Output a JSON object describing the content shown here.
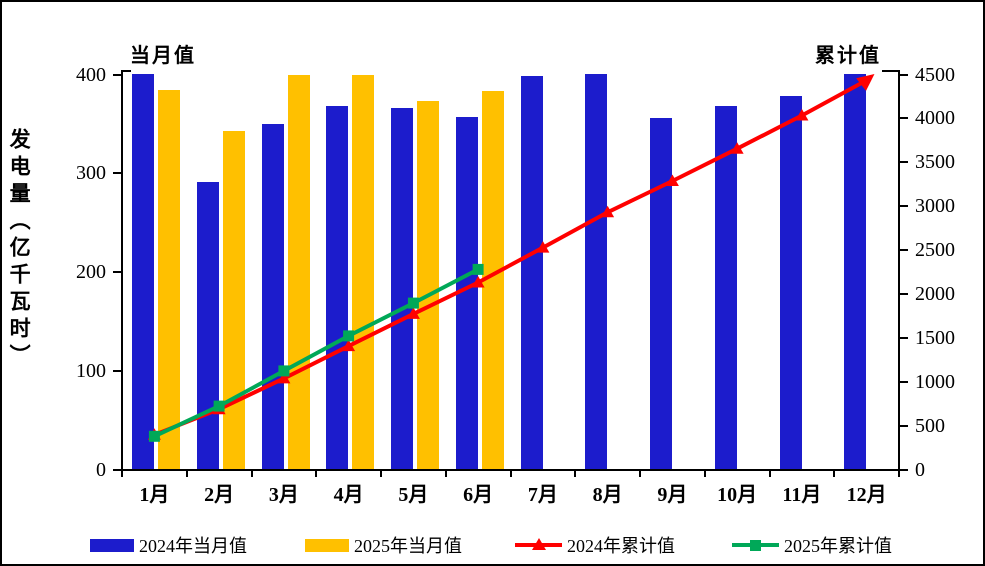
{
  "chart_data": {
    "type": "bar+line-combo",
    "title_left_axis": "当月值",
    "title_right_axis": "累计值",
    "y_axis_title": "发电量（亿千瓦时）",
    "x_categories": [
      "1月",
      "2月",
      "3月",
      "4月",
      "5月",
      "6月",
      "7月",
      "8月",
      "9月",
      "10月",
      "11月",
      "12月"
    ],
    "left_axis": {
      "min": 0,
      "max": 400,
      "ticks": [
        0,
        100,
        200,
        300,
        400
      ]
    },
    "right_axis": {
      "min": 0,
      "max": 4500,
      "ticks": [
        0,
        500,
        1000,
        1500,
        2000,
        2500,
        3000,
        3500,
        4000,
        4500
      ]
    },
    "grid": false,
    "legend_position": "bottom",
    "series": [
      {
        "name": "2024年当月值",
        "type": "bar",
        "axis": "left",
        "color": "#1C1CCC",
        "values": [
          401,
          291,
          350,
          368,
          366,
          357,
          398,
          401,
          356,
          368,
          378,
          401
        ]
      },
      {
        "name": "2025年当月值",
        "type": "bar",
        "axis": "left",
        "color": "#FFC000",
        "values": [
          384,
          343,
          400,
          399,
          373,
          383
        ]
      },
      {
        "name": "2024年累计值",
        "type": "line",
        "marker": "triangle",
        "axis": "right",
        "color": "#FF0000",
        "values": [
          401,
          692,
          1042,
          1410,
          1776,
          2133,
          2531,
          2932,
          3288,
          3656,
          4034,
          4435
        ]
      },
      {
        "name": "2025年累计值",
        "type": "line",
        "marker": "square",
        "axis": "right",
        "color": "#00A858",
        "values": [
          384,
          727,
          1127,
          1526,
          1899,
          2282
        ]
      }
    ]
  }
}
